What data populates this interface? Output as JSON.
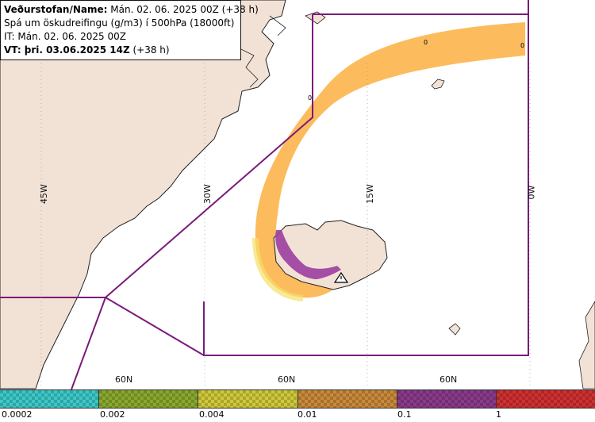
{
  "info": {
    "line1_bold": "Veðurstofan/Name:",
    "line1_rest": " Mán. 02. 06. 2025 00Z (+38 h)",
    "line2": "Spá um öskudreifingu (g/m3) í 500hPa (18000ft)",
    "line3": "IT: Mán. 02. 06. 2025 00Z",
    "line4_bold": "VT: þri. 03.06.2025 14Z",
    "line4_rest": " (+38 h)"
  },
  "grid_labels": {
    "lon_45w": "45W",
    "lon_30w": "30W",
    "lon_15w": "15W",
    "lon_0w": "0W",
    "lat_60n_a": "60N",
    "lat_60n_b": "60N",
    "lat_60n_c": "60N"
  },
  "contour_labels": [
    "0",
    "0",
    "0"
  ],
  "legend": {
    "colors": [
      "#3cc8c8",
      "#8aa82e",
      "#cfc93a",
      "#c98a3a",
      "#8a3a8a",
      "#d03030"
    ],
    "ticks": [
      "0.0002",
      "0.002",
      "0.004",
      "0.01",
      "0.1",
      "1"
    ]
  },
  "icons": {
    "volcano": "warning-triangle-icon"
  },
  "colors": {
    "land": "#f2e2d6",
    "sea": "#ffffff",
    "border": "#7a1a7a",
    "ash_low": "#fbb041",
    "ash_high": "#9b3fa0"
  }
}
